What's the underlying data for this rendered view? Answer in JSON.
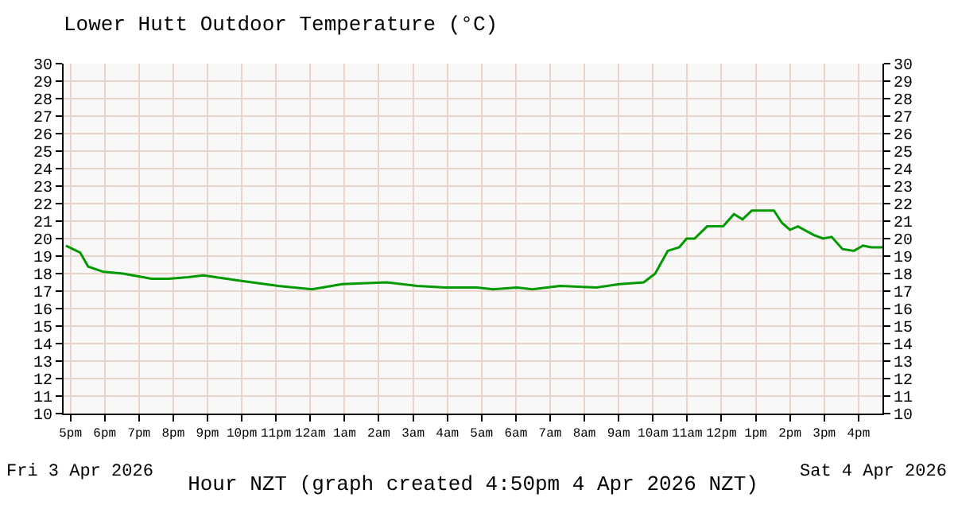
{
  "chart_data": {
    "type": "line",
    "title": "Lower Hutt Outdoor Temperature (°C)",
    "xlabel": "Hour NZT (graph created 4:50pm 4 Apr 2026 NZT)",
    "annotations": [
      "Fri 3 Apr 2026",
      "Sat 4 Apr 2026"
    ],
    "x": [
      "2026-04-03T16:52",
      "2026-04-03T17:17",
      "2026-04-03T17:31",
      "2026-04-03T17:58",
      "2026-04-03T18:32",
      "2026-04-03T19:22",
      "2026-04-03T19:52",
      "2026-04-03T20:26",
      "2026-04-03T20:53",
      "2026-04-03T21:55",
      "2026-04-03T23:04",
      "2026-04-04T00:03",
      "2026-04-04T00:56",
      "2026-04-04T02:14",
      "2026-04-04T03:07",
      "2026-04-04T03:56",
      "2026-04-04T04:52",
      "2026-04-04T05:20",
      "2026-04-04T06:02",
      "2026-04-04T06:29",
      "2026-04-04T07:17",
      "2026-04-04T08:21",
      "2026-04-04T09:02",
      "2026-04-04T09:44",
      "2026-04-04T10:04",
      "2026-04-04T10:26",
      "2026-04-04T10:46",
      "2026-04-04T10:59",
      "2026-04-04T11:13",
      "2026-04-04T11:35",
      "2026-04-04T12:03",
      "2026-04-04T12:22",
      "2026-04-04T12:37",
      "2026-04-04T12:53",
      "2026-04-04T13:32",
      "2026-04-04T13:46",
      "2026-04-04T14:00",
      "2026-04-04T14:14",
      "2026-04-04T14:42",
      "2026-04-04T14:58",
      "2026-04-04T15:13",
      "2026-04-04T15:32",
      "2026-04-04T15:52",
      "2026-04-04T16:08",
      "2026-04-04T16:22",
      "2026-04-04T16:42"
    ],
    "series": [
      {
        "color": "#009900",
        "values": [
          19.6,
          19.2,
          18.4,
          18.1,
          18.0,
          17.7,
          17.7,
          17.8,
          17.9,
          17.6,
          17.3,
          17.1,
          17.4,
          17.5,
          17.3,
          17.2,
          17.2,
          17.1,
          17.2,
          17.1,
          17.3,
          17.2,
          17.4,
          17.5,
          18.0,
          19.3,
          19.5,
          20.0,
          20.0,
          20.7,
          20.7,
          21.4,
          21.1,
          21.6,
          21.6,
          20.9,
          20.5,
          20.7,
          20.2,
          20.0,
          20.1,
          19.4,
          19.3,
          19.6,
          19.5,
          19.5
        ]
      }
    ],
    "xlim": [
      "2026-04-03T16:48",
      "2026-04-04T16:42"
    ],
    "xticks": [
      {
        "value": "2026-04-03T17:00",
        "label": "5pm"
      },
      {
        "value": "2026-04-03T18:00",
        "label": "6pm"
      },
      {
        "value": "2026-04-03T19:00",
        "label": "7pm"
      },
      {
        "value": "2026-04-03T20:00",
        "label": "8pm"
      },
      {
        "value": "2026-04-03T21:00",
        "label": "9pm"
      },
      {
        "value": "2026-04-03T22:00",
        "label": "10pm"
      },
      {
        "value": "2026-04-03T23:00",
        "label": "11pm"
      },
      {
        "value": "2026-04-04T00:00",
        "label": "12am"
      },
      {
        "value": "2026-04-04T01:00",
        "label": "1am"
      },
      {
        "value": "2026-04-04T02:00",
        "label": "2am"
      },
      {
        "value": "2026-04-04T03:00",
        "label": "3am"
      },
      {
        "value": "2026-04-04T04:00",
        "label": "4am"
      },
      {
        "value": "2026-04-04T05:00",
        "label": "5am"
      },
      {
        "value": "2026-04-04T06:00",
        "label": "6am"
      },
      {
        "value": "2026-04-04T07:00",
        "label": "7am"
      },
      {
        "value": "2026-04-04T08:00",
        "label": "8am"
      },
      {
        "value": "2026-04-04T09:00",
        "label": "9am"
      },
      {
        "value": "2026-04-04T10:00",
        "label": "10am"
      },
      {
        "value": "2026-04-04T11:00",
        "label": "11am"
      },
      {
        "value": "2026-04-04T12:00",
        "label": "12pm"
      },
      {
        "value": "2026-04-04T13:00",
        "label": "1pm"
      },
      {
        "value": "2026-04-04T14:00",
        "label": "2pm"
      },
      {
        "value": "2026-04-04T15:00",
        "label": "3pm"
      },
      {
        "value": "2026-04-04T16:00",
        "label": "4pm"
      }
    ],
    "ylim": [
      10,
      30
    ],
    "yticks": [
      10,
      11,
      12,
      13,
      14,
      15,
      16,
      17,
      18,
      19,
      20,
      21,
      22,
      23,
      24,
      25,
      26,
      27,
      28,
      29,
      30
    ],
    "y2lim": [
      10,
      30
    ],
    "y2ticks": [
      10,
      11,
      12,
      13,
      14,
      15,
      16,
      17,
      18,
      19,
      20,
      21,
      22,
      23,
      24,
      25,
      26,
      27,
      28,
      29,
      30
    ],
    "grid": true,
    "marker": "none",
    "line_style": "solid"
  }
}
